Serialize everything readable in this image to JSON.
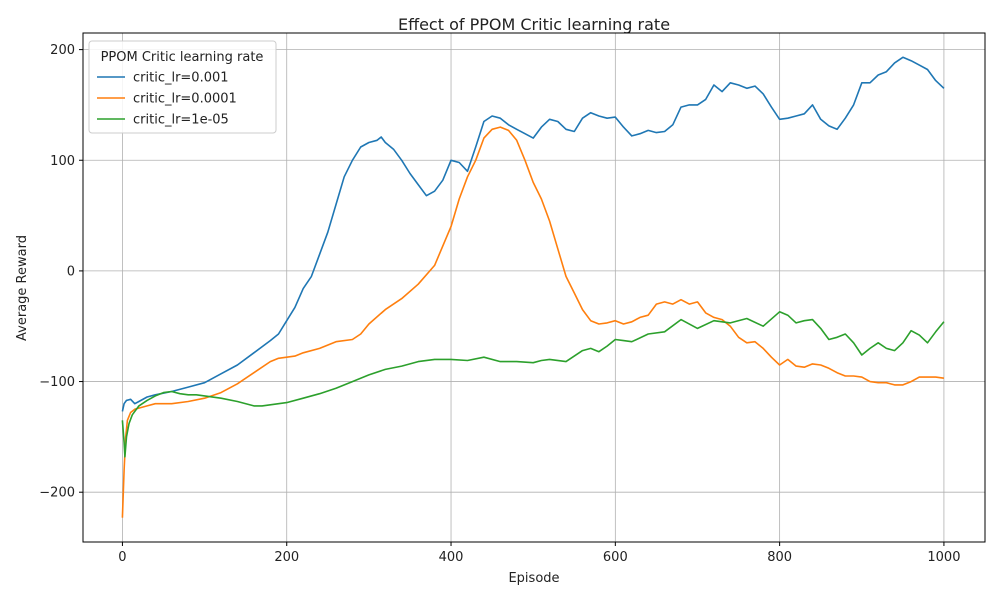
{
  "chart_data": {
    "type": "line",
    "title": "Effect of PPOM Critic learning rate",
    "xlabel": "Episode",
    "ylabel": "Average Reward",
    "xlim": [
      -48,
      1050
    ],
    "ylim": [
      -245,
      215
    ],
    "xticks": [
      0,
      200,
      400,
      600,
      800,
      1000
    ],
    "yticks": [
      -200,
      -100,
      0,
      100,
      200
    ],
    "ytick_labels": [
      "−200",
      "−100",
      "0",
      "100",
      "200"
    ],
    "grid": true,
    "legend": {
      "title": "PPOM Critic learning rate",
      "position": "top-left"
    },
    "series": [
      {
        "name": "critic_lr=0.001",
        "color": "#1f77b4",
        "points": [
          [
            0,
            -127
          ],
          [
            2,
            -120
          ],
          [
            5,
            -117
          ],
          [
            10,
            -116
          ],
          [
            15,
            -120
          ],
          [
            20,
            -118
          ],
          [
            30,
            -114
          ],
          [
            40,
            -112
          ],
          [
            60,
            -109
          ],
          [
            80,
            -105
          ],
          [
            100,
            -101
          ],
          [
            120,
            -93
          ],
          [
            140,
            -85
          ],
          [
            160,
            -74
          ],
          [
            180,
            -63
          ],
          [
            190,
            -57
          ],
          [
            200,
            -45
          ],
          [
            210,
            -33
          ],
          [
            220,
            -16
          ],
          [
            230,
            -5
          ],
          [
            240,
            15
          ],
          [
            250,
            35
          ],
          [
            260,
            60
          ],
          [
            270,
            85
          ],
          [
            280,
            100
          ],
          [
            290,
            112
          ],
          [
            300,
            116
          ],
          [
            310,
            118
          ],
          [
            315,
            121
          ],
          [
            320,
            116
          ],
          [
            330,
            110
          ],
          [
            340,
            100
          ],
          [
            350,
            88
          ],
          [
            360,
            78
          ],
          [
            370,
            68
          ],
          [
            380,
            72
          ],
          [
            390,
            82
          ],
          [
            400,
            100
          ],
          [
            410,
            98
          ],
          [
            420,
            90
          ],
          [
            430,
            112
          ],
          [
            440,
            135
          ],
          [
            450,
            140
          ],
          [
            460,
            138
          ],
          [
            470,
            132
          ],
          [
            480,
            128
          ],
          [
            490,
            124
          ],
          [
            500,
            120
          ],
          [
            510,
            130
          ],
          [
            520,
            137
          ],
          [
            530,
            135
          ],
          [
            540,
            128
          ],
          [
            550,
            126
          ],
          [
            560,
            138
          ],
          [
            570,
            143
          ],
          [
            580,
            140
          ],
          [
            590,
            138
          ],
          [
            600,
            139
          ],
          [
            610,
            130
          ],
          [
            620,
            122
          ],
          [
            630,
            124
          ],
          [
            640,
            127
          ],
          [
            650,
            125
          ],
          [
            660,
            126
          ],
          [
            670,
            132
          ],
          [
            680,
            148
          ],
          [
            690,
            150
          ],
          [
            700,
            150
          ],
          [
            710,
            155
          ],
          [
            720,
            168
          ],
          [
            730,
            162
          ],
          [
            740,
            170
          ],
          [
            750,
            168
          ],
          [
            760,
            165
          ],
          [
            770,
            167
          ],
          [
            780,
            160
          ],
          [
            790,
            148
          ],
          [
            800,
            137
          ],
          [
            810,
            138
          ],
          [
            820,
            140
          ],
          [
            830,
            142
          ],
          [
            840,
            150
          ],
          [
            850,
            137
          ],
          [
            860,
            131
          ],
          [
            870,
            128
          ],
          [
            880,
            138
          ],
          [
            890,
            150
          ],
          [
            900,
            170
          ],
          [
            910,
            170
          ],
          [
            920,
            177
          ],
          [
            930,
            180
          ],
          [
            940,
            188
          ],
          [
            950,
            193
          ],
          [
            960,
            190
          ],
          [
            970,
            186
          ],
          [
            980,
            182
          ],
          [
            990,
            172
          ],
          [
            1000,
            165
          ]
        ]
      },
      {
        "name": "critic_lr=0.0001",
        "color": "#ff7f0e",
        "points": [
          [
            0,
            -223
          ],
          [
            2,
            -180
          ],
          [
            4,
            -150
          ],
          [
            6,
            -135
          ],
          [
            10,
            -128
          ],
          [
            15,
            -125
          ],
          [
            20,
            -124
          ],
          [
            30,
            -122
          ],
          [
            40,
            -120
          ],
          [
            60,
            -120
          ],
          [
            80,
            -118
          ],
          [
            100,
            -115
          ],
          [
            120,
            -110
          ],
          [
            140,
            -102
          ],
          [
            160,
            -92
          ],
          [
            180,
            -82
          ],
          [
            190,
            -79
          ],
          [
            200,
            -78
          ],
          [
            210,
            -77
          ],
          [
            220,
            -74
          ],
          [
            240,
            -70
          ],
          [
            260,
            -64
          ],
          [
            280,
            -62
          ],
          [
            290,
            -57
          ],
          [
            300,
            -48
          ],
          [
            320,
            -35
          ],
          [
            340,
            -25
          ],
          [
            360,
            -12
          ],
          [
            380,
            5
          ],
          [
            400,
            40
          ],
          [
            410,
            65
          ],
          [
            420,
            85
          ],
          [
            430,
            100
          ],
          [
            440,
            120
          ],
          [
            450,
            128
          ],
          [
            460,
            130
          ],
          [
            470,
            127
          ],
          [
            480,
            118
          ],
          [
            490,
            100
          ],
          [
            500,
            80
          ],
          [
            510,
            65
          ],
          [
            520,
            45
          ],
          [
            530,
            20
          ],
          [
            540,
            -5
          ],
          [
            550,
            -20
          ],
          [
            560,
            -35
          ],
          [
            570,
            -45
          ],
          [
            580,
            -48
          ],
          [
            590,
            -47
          ],
          [
            600,
            -45
          ],
          [
            610,
            -48
          ],
          [
            620,
            -46
          ],
          [
            630,
            -42
          ],
          [
            640,
            -40
          ],
          [
            650,
            -30
          ],
          [
            660,
            -28
          ],
          [
            670,
            -30
          ],
          [
            680,
            -26
          ],
          [
            690,
            -30
          ],
          [
            700,
            -28
          ],
          [
            710,
            -38
          ],
          [
            720,
            -42
          ],
          [
            730,
            -44
          ],
          [
            740,
            -50
          ],
          [
            750,
            -60
          ],
          [
            760,
            -65
          ],
          [
            770,
            -64
          ],
          [
            780,
            -70
          ],
          [
            790,
            -78
          ],
          [
            800,
            -85
          ],
          [
            810,
            -80
          ],
          [
            820,
            -86
          ],
          [
            830,
            -87
          ],
          [
            840,
            -84
          ],
          [
            850,
            -85
          ],
          [
            860,
            -88
          ],
          [
            870,
            -92
          ],
          [
            880,
            -95
          ],
          [
            890,
            -95
          ],
          [
            900,
            -96
          ],
          [
            910,
            -100
          ],
          [
            920,
            -101
          ],
          [
            930,
            -101
          ],
          [
            940,
            -103
          ],
          [
            950,
            -103
          ],
          [
            960,
            -100
          ],
          [
            970,
            -96
          ],
          [
            980,
            -96
          ],
          [
            990,
            -96
          ],
          [
            1000,
            -97
          ]
        ]
      },
      {
        "name": "critic_lr=1e-05",
        "color": "#2ca02c",
        "points": [
          [
            0,
            -135
          ],
          [
            2,
            -155
          ],
          [
            3,
            -168
          ],
          [
            5,
            -150
          ],
          [
            8,
            -138
          ],
          [
            12,
            -130
          ],
          [
            20,
            -122
          ],
          [
            30,
            -117
          ],
          [
            40,
            -113
          ],
          [
            50,
            -110
          ],
          [
            60,
            -109
          ],
          [
            70,
            -111
          ],
          [
            80,
            -112
          ],
          [
            90,
            -112
          ],
          [
            100,
            -113
          ],
          [
            120,
            -115
          ],
          [
            140,
            -118
          ],
          [
            160,
            -122
          ],
          [
            170,
            -122
          ],
          [
            180,
            -121
          ],
          [
            200,
            -119
          ],
          [
            220,
            -115
          ],
          [
            240,
            -111
          ],
          [
            260,
            -106
          ],
          [
            280,
            -100
          ],
          [
            300,
            -94
          ],
          [
            320,
            -89
          ],
          [
            340,
            -86
          ],
          [
            360,
            -82
          ],
          [
            380,
            -80
          ],
          [
            400,
            -80
          ],
          [
            420,
            -81
          ],
          [
            440,
            -78
          ],
          [
            460,
            -82
          ],
          [
            480,
            -82
          ],
          [
            500,
            -83
          ],
          [
            510,
            -81
          ],
          [
            520,
            -80
          ],
          [
            540,
            -82
          ],
          [
            560,
            -72
          ],
          [
            570,
            -70
          ],
          [
            580,
            -73
          ],
          [
            590,
            -68
          ],
          [
            600,
            -62
          ],
          [
            610,
            -63
          ],
          [
            620,
            -64
          ],
          [
            640,
            -57
          ],
          [
            660,
            -55
          ],
          [
            680,
            -44
          ],
          [
            700,
            -52
          ],
          [
            720,
            -45
          ],
          [
            740,
            -47
          ],
          [
            760,
            -43
          ],
          [
            780,
            -50
          ],
          [
            800,
            -37
          ],
          [
            810,
            -40
          ],
          [
            820,
            -47
          ],
          [
            830,
            -45
          ],
          [
            840,
            -44
          ],
          [
            850,
            -52
          ],
          [
            860,
            -62
          ],
          [
            870,
            -60
          ],
          [
            880,
            -57
          ],
          [
            890,
            -65
          ],
          [
            900,
            -76
          ],
          [
            910,
            -70
          ],
          [
            920,
            -65
          ],
          [
            930,
            -70
          ],
          [
            940,
            -72
          ],
          [
            950,
            -65
          ],
          [
            960,
            -54
          ],
          [
            970,
            -58
          ],
          [
            980,
            -65
          ],
          [
            990,
            -55
          ],
          [
            1000,
            -46
          ]
        ]
      }
    ]
  }
}
